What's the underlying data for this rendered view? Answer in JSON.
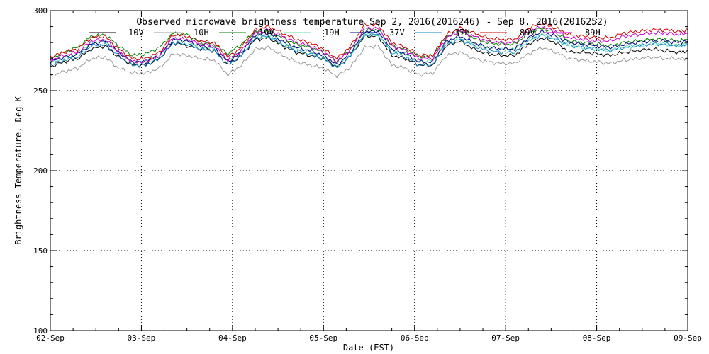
{
  "chart_data": {
    "type": "line",
    "title": "Observed microwave brightness temperature Sep  2, 2016(2016246) - Sep  8, 2016(2016252)",
    "xlabel": "Date (EST)",
    "ylabel": "Brightness Temperature, Deg K",
    "ylim": [
      100,
      300
    ],
    "xlim": [
      0,
      7
    ],
    "y_ticks": [
      100,
      150,
      200,
      250,
      300
    ],
    "x_tick_labels": [
      "02-Sep",
      "03-Sep",
      "04-Sep",
      "05-Sep",
      "06-Sep",
      "07-Sep",
      "08-Sep",
      "09-Sep"
    ],
    "grid": true,
    "legend_position": "top",
    "x_days": [
      0.0,
      0.15,
      0.3,
      0.45,
      0.6,
      0.75,
      0.9,
      1.05,
      1.2,
      1.35,
      1.5,
      1.65,
      1.8,
      1.95,
      2.1,
      2.25,
      2.4,
      2.55,
      2.7,
      2.85,
      3.0,
      3.15,
      3.3,
      3.45,
      3.6,
      3.75,
      3.9,
      4.05,
      4.2,
      4.35,
      4.5,
      4.65,
      4.8,
      4.95,
      5.1,
      5.25,
      5.4,
      5.55,
      5.7,
      5.85,
      6.0,
      6.15,
      6.3,
      6.45,
      6.6,
      6.75,
      6.9,
      7.0
    ],
    "series": [
      {
        "name": "10V",
        "color": "#000000",
        "values": [
          265,
          268,
          270,
          276,
          278,
          271,
          266,
          266,
          270,
          280,
          278,
          276,
          275,
          266,
          272,
          282,
          283,
          278,
          274,
          272,
          270,
          265,
          272,
          284,
          284,
          272,
          270,
          266,
          266,
          278,
          281,
          276,
          273,
          272,
          272,
          279,
          283,
          280,
          274,
          274,
          273,
          272,
          274,
          275,
          276,
          275,
          274,
          275
        ]
      },
      {
        "name": "10H",
        "color": "#999999",
        "values": [
          259,
          262,
          264,
          270,
          271,
          264,
          261,
          261,
          264,
          273,
          272,
          270,
          269,
          260,
          266,
          276,
          277,
          272,
          268,
          266,
          264,
          259,
          265,
          277,
          278,
          266,
          264,
          260,
          261,
          272,
          274,
          270,
          268,
          267,
          267,
          273,
          277,
          274,
          270,
          269,
          268,
          267,
          269,
          270,
          271,
          270,
          270,
          270
        ]
      },
      {
        "name": "19V",
        "color": "#008000",
        "values": [
          270,
          274,
          277,
          284,
          285,
          278,
          272,
          273,
          277,
          286,
          285,
          280,
          279,
          273,
          279,
          287,
          287,
          283,
          279,
          277,
          274,
          268,
          276,
          288,
          288,
          278,
          276,
          271,
          272,
          284,
          287,
          283,
          280,
          279,
          279,
          286,
          289,
          286,
          281,
          280,
          279,
          278,
          280,
          281,
          282,
          282,
          281,
          282
        ]
      },
      {
        "name": "19H",
        "color": "#66ddaa",
        "values": [
          267,
          270,
          273,
          280,
          281,
          274,
          268,
          269,
          273,
          282,
          281,
          277,
          276,
          269,
          275,
          284,
          284,
          280,
          276,
          274,
          271,
          265,
          273,
          285,
          285,
          275,
          273,
          268,
          269,
          280,
          283,
          279,
          277,
          276,
          276,
          282,
          285,
          282,
          278,
          277,
          276,
          275,
          277,
          278,
          279,
          279,
          278,
          279
        ]
      },
      {
        "name": "37V",
        "color": "#000080",
        "values": [
          268,
          271,
          273,
          279,
          281,
          274,
          268,
          268,
          272,
          282,
          281,
          278,
          277,
          268,
          274,
          285,
          286,
          281,
          277,
          275,
          272,
          266,
          274,
          287,
          287,
          276,
          273,
          268,
          268,
          281,
          284,
          280,
          277,
          276,
          276,
          283,
          287,
          284,
          280,
          279,
          278,
          277,
          279,
          280,
          281,
          281,
          280,
          281
        ]
      },
      {
        "name": "37H",
        "color": "#1188cc",
        "values": [
          266,
          269,
          271,
          278,
          279,
          272,
          266,
          266,
          270,
          280,
          279,
          276,
          275,
          266,
          272,
          283,
          284,
          279,
          275,
          273,
          270,
          264,
          272,
          285,
          285,
          274,
          271,
          266,
          266,
          279,
          282,
          278,
          275,
          274,
          274,
          281,
          285,
          282,
          278,
          277,
          276,
          275,
          277,
          278,
          279,
          279,
          278,
          279
        ]
      },
      {
        "name": "89V",
        "color": "#cc0000",
        "values": [
          271,
          274,
          276,
          283,
          284,
          276,
          270,
          270,
          274,
          285,
          284,
          281,
          280,
          271,
          277,
          288,
          290,
          286,
          282,
          280,
          276,
          270,
          278,
          291,
          291,
          280,
          277,
          272,
          272,
          285,
          289,
          286,
          283,
          282,
          282,
          289,
          292,
          289,
          285,
          284,
          283,
          283,
          286,
          287,
          288,
          288,
          287,
          288
        ]
      },
      {
        "name": "89H",
        "color": "#cc00cc",
        "values": [
          269,
          272,
          274,
          281,
          282,
          274,
          268,
          268,
          272,
          283,
          282,
          279,
          278,
          269,
          275,
          286,
          288,
          284,
          280,
          278,
          274,
          268,
          276,
          289,
          289,
          278,
          275,
          270,
          270,
          283,
          287,
          284,
          281,
          280,
          280,
          287,
          290,
          287,
          283,
          282,
          281,
          281,
          284,
          285,
          286,
          286,
          285,
          286
        ]
      }
    ]
  }
}
